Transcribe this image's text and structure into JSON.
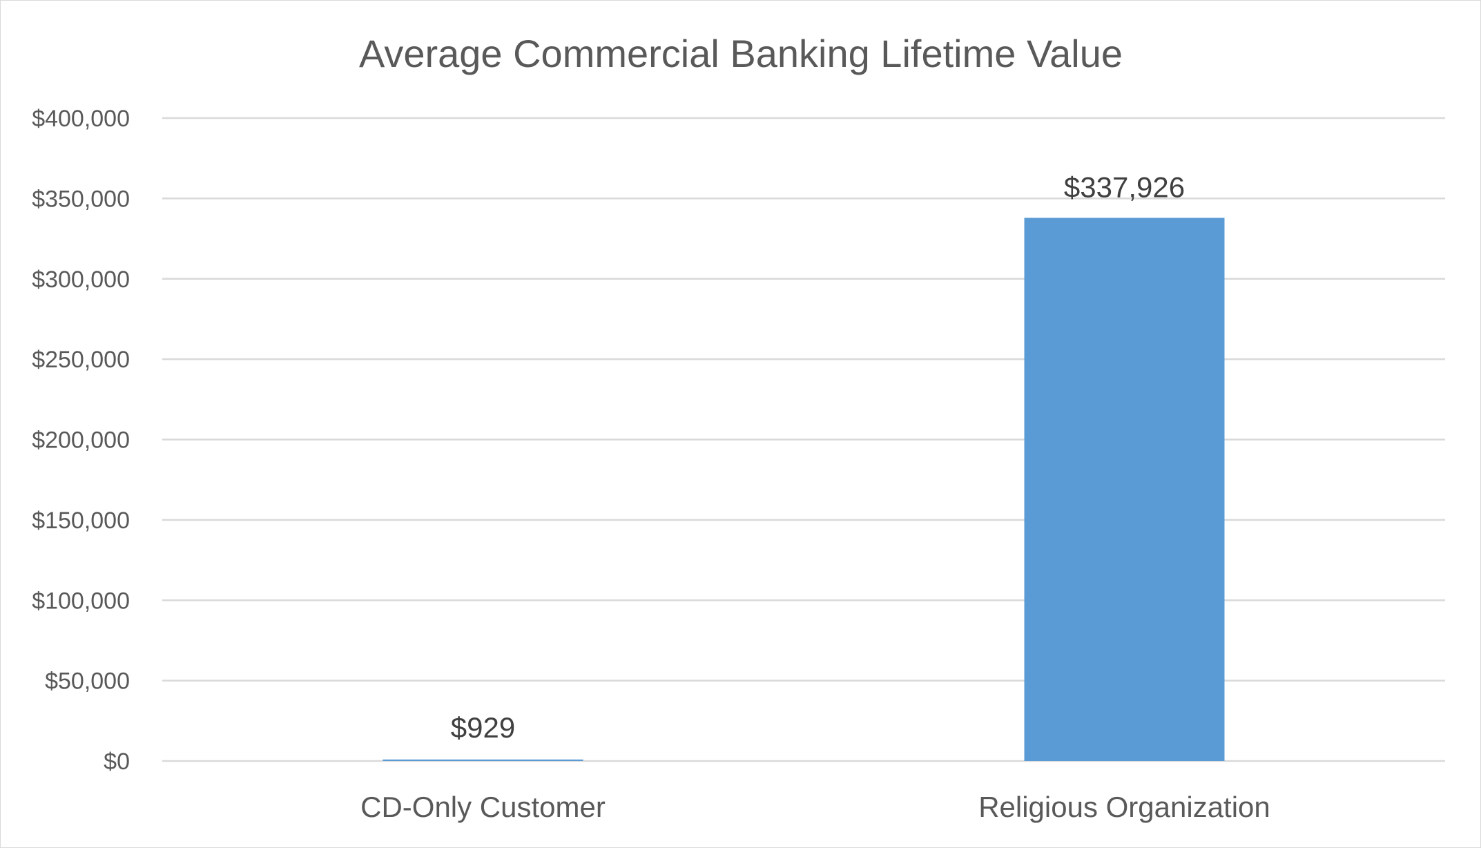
{
  "chart_data": {
    "type": "bar",
    "title": "Average Commercial Banking Lifetime Value",
    "xlabel": "",
    "ylabel": "",
    "categories": [
      "CD-Only Customer",
      "Religious Organization"
    ],
    "values": [
      929,
      337926
    ],
    "data_labels": [
      "$929",
      "$337,926"
    ],
    "ylim": [
      0,
      400000
    ],
    "yticks": [
      0,
      50000,
      100000,
      150000,
      200000,
      250000,
      300000,
      350000,
      400000
    ],
    "ytick_labels": [
      "$0",
      "$50,000",
      "$100,000",
      "$150,000",
      "$200,000",
      "$250,000",
      "$300,000",
      "$350,000",
      "$400,000"
    ],
    "grid": true,
    "legend": "none",
    "bar_color": "#5b9bd5"
  }
}
